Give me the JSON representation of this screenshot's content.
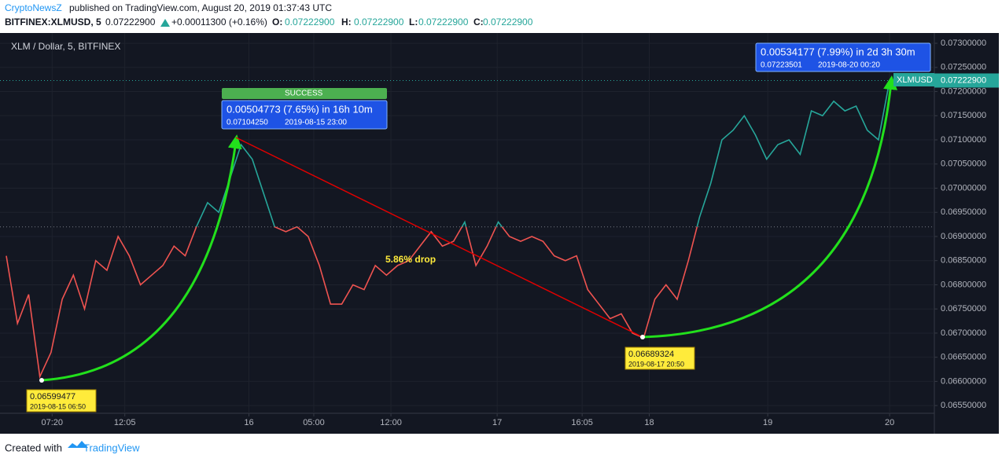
{
  "header": {
    "brand": "CryptoNewsZ",
    "published": "published on TradingView.com, August 20, 2019 01:37:43 UTC",
    "symbol": "BITFINEX:XLMUSD, 5",
    "last": "0.07222900",
    "change": "+0.00011300 (+0.16%)",
    "o_label": "O:",
    "o": "0.07222900",
    "h_label": "H:",
    "h": "0.07222900",
    "l_label": "L:",
    "l": "0.07222900",
    "c_label": "C:",
    "c": "0.07222900"
  },
  "chart_data": {
    "type": "line",
    "title": "XLM / Dollar, 5, BITFINEX",
    "series": [
      {
        "name": "XLMUSD",
        "color_up": "#26a69a",
        "color_down": "#ef5350",
        "values": [
          0.0686,
          0.0672,
          0.0678,
          0.0661,
          0.0666,
          0.0677,
          0.0682,
          0.0675,
          0.0685,
          0.0683,
          0.069,
          0.0686,
          0.068,
          0.0682,
          0.0684,
          0.0688,
          0.0686,
          0.0692,
          0.0697,
          0.0695,
          0.0702,
          0.0709,
          0.0706,
          0.0699,
          0.0692,
          0.0691,
          0.0692,
          0.069,
          0.0684,
          0.0676,
          0.0676,
          0.068,
          0.0679,
          0.0684,
          0.0682,
          0.0684,
          0.0685,
          0.0688,
          0.0691,
          0.0688,
          0.0689,
          0.0693,
          0.0684,
          0.0688,
          0.0693,
          0.069,
          0.0689,
          0.069,
          0.0689,
          0.0686,
          0.0685,
          0.0686,
          0.0679,
          0.0676,
          0.0673,
          0.0674,
          0.067,
          0.0669,
          0.0677,
          0.068,
          0.0677,
          0.0685,
          0.0694,
          0.0701,
          0.071,
          0.0712,
          0.0715,
          0.0711,
          0.0706,
          0.0709,
          0.071,
          0.0707,
          0.0716,
          0.0715,
          0.0718,
          0.0716,
          0.0717,
          0.0712,
          0.071,
          0.07223
        ]
      }
    ],
    "baseline": 0.0692,
    "last_price": {
      "value": 0.072229,
      "label": "0.07222900"
    },
    "xlim": [
      0,
      83
    ],
    "xticks": [
      {
        "value": 4.1,
        "label": "07:20"
      },
      {
        "value": 10.6,
        "label": "12:05"
      },
      {
        "value": 21.7,
        "label": "16"
      },
      {
        "value": 27.5,
        "label": "05:00"
      },
      {
        "value": 34.4,
        "label": "12:00"
      },
      {
        "value": 43.9,
        "label": "17"
      },
      {
        "value": 51.5,
        "label": "16:05"
      },
      {
        "value": 57.5,
        "label": "18"
      },
      {
        "value": 68.1,
        "label": "19"
      },
      {
        "value": 79,
        "label": "20"
      }
    ],
    "ylim": [
      0.06534,
      0.07318
    ],
    "yticks": [
      {
        "value": 0.0655,
        "label": "0.06550000"
      },
      {
        "value": 0.066,
        "label": "0.06600000"
      },
      {
        "value": 0.0665,
        "label": "0.06650000"
      },
      {
        "value": 0.067,
        "label": "0.06700000"
      },
      {
        "value": 0.0675,
        "label": "0.06750000"
      },
      {
        "value": 0.068,
        "label": "0.06800000"
      },
      {
        "value": 0.0685,
        "label": "0.06850000"
      },
      {
        "value": 0.069,
        "label": "0.06900000"
      },
      {
        "value": 0.0695,
        "label": "0.06950000"
      },
      {
        "value": 0.07,
        "label": "0.07000000"
      },
      {
        "value": 0.0705,
        "label": "0.07050000"
      },
      {
        "value": 0.071,
        "label": "0.07100000"
      },
      {
        "value": 0.0715,
        "label": "0.07150000"
      },
      {
        "value": 0.072,
        "label": "0.07200000"
      },
      {
        "value": 0.0725,
        "label": "0.07250000"
      },
      {
        "value": 0.073,
        "label": "0.07300000"
      }
    ],
    "grid": true,
    "annotations": {
      "low_price": "0.06599477",
      "low_date": "2019-08-15 06:50",
      "rise1": "0.00504773 (7.65%) in 16h 10m",
      "rise1_price": "0.07104250",
      "rise1_date": "2019-08-15  23:00",
      "status": "SUCCESS",
      "drop": "5.86% drop",
      "trough_price": "0.06689324",
      "trough_date": "2019-08-17 20:50",
      "rise2": "0.00534177 (7.99%) in 2d 3h 30m",
      "rise2_price": "0.07223501",
      "rise2_date": "2019-08-20  00:20"
    }
  },
  "footer": {
    "created": "Created with",
    "brand": "TradingView"
  }
}
